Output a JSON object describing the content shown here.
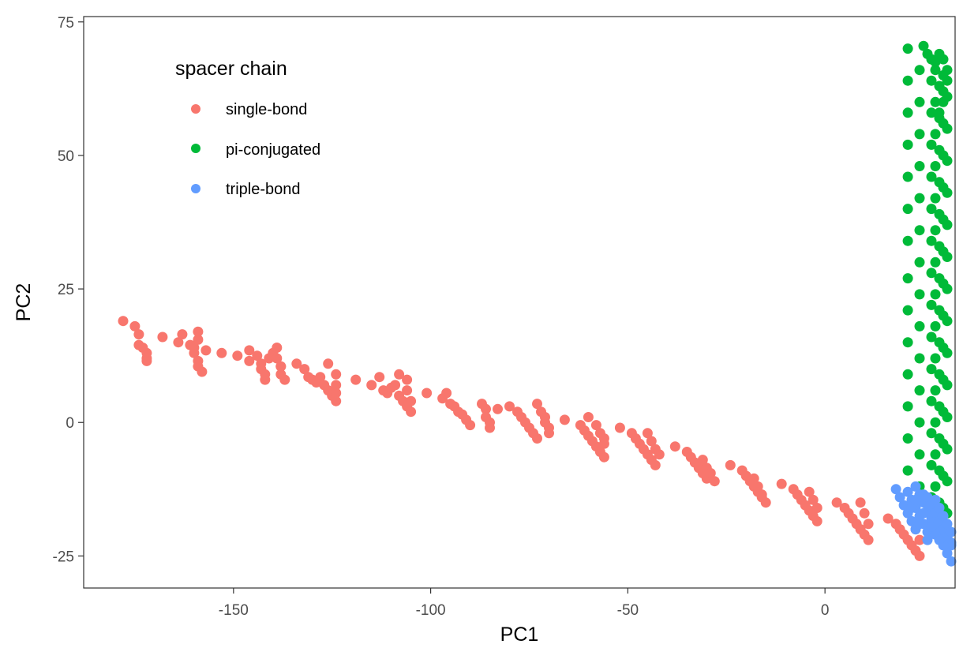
{
  "chart_data": {
    "type": "scatter",
    "xlabel": "PC1",
    "ylabel": "PC2",
    "xlim": [
      -188,
      33
    ],
    "ylim": [
      -31,
      76
    ],
    "x_ticks": [
      -150,
      -100,
      -50,
      0
    ],
    "y_ticks": [
      -25,
      0,
      25,
      50,
      75
    ],
    "x_tick_labels": [
      "-150",
      "-100",
      "-50",
      "0"
    ],
    "y_tick_labels": [
      "-25",
      "0",
      "25",
      "50",
      "75"
    ],
    "grid": false,
    "legend": {
      "title": "spacer chain",
      "position": "top-left"
    },
    "series": [
      {
        "name": "single-bond",
        "color": "#F8766D",
        "points": [
          [
            -178,
            19
          ],
          [
            -175,
            18
          ],
          [
            -174,
            16.5
          ],
          [
            -174,
            14.5
          ],
          [
            -173,
            14
          ],
          [
            -172,
            13
          ],
          [
            -172,
            12
          ],
          [
            -172,
            11.5
          ],
          [
            -168,
            16
          ],
          [
            -164,
            15
          ],
          [
            -163,
            16.5
          ],
          [
            -161,
            14.5
          ],
          [
            -160,
            14
          ],
          [
            -160,
            13
          ],
          [
            -159,
            11.5
          ],
          [
            -159,
            10.5
          ],
          [
            -158,
            9.5
          ],
          [
            -159,
            15.5
          ],
          [
            -159,
            17
          ],
          [
            -157,
            13.5
          ],
          [
            -153,
            13
          ],
          [
            -149,
            12.5
          ],
          [
            -146,
            13.5
          ],
          [
            -146,
            11.5
          ],
          [
            -144,
            12.5
          ],
          [
            -143,
            11
          ],
          [
            -143,
            10
          ],
          [
            -142,
            9
          ],
          [
            -142,
            8
          ],
          [
            -141,
            12
          ],
          [
            -140,
            13
          ],
          [
            -139,
            14
          ],
          [
            -139,
            12
          ],
          [
            -138,
            10.5
          ],
          [
            -138,
            9
          ],
          [
            -137,
            8
          ],
          [
            -138,
            10.5
          ],
          [
            -134,
            11
          ],
          [
            -132,
            10
          ],
          [
            -131,
            8.5
          ],
          [
            -130,
            8
          ],
          [
            -129,
            7.5
          ],
          [
            -128,
            8.5
          ],
          [
            -127,
            7
          ],
          [
            -126,
            6
          ],
          [
            -125,
            5
          ],
          [
            -124,
            4
          ],
          [
            -126,
            11
          ],
          [
            -124,
            9
          ],
          [
            -124,
            7
          ],
          [
            -124,
            5.5
          ],
          [
            -119,
            8
          ],
          [
            -115,
            7
          ],
          [
            -113,
            8.5
          ],
          [
            -112,
            6
          ],
          [
            -111,
            5.5
          ],
          [
            -110,
            6.5
          ],
          [
            -109,
            7
          ],
          [
            -108,
            5
          ],
          [
            -107,
            4
          ],
          [
            -106,
            3
          ],
          [
            -105,
            2
          ],
          [
            -108,
            9
          ],
          [
            -106,
            8
          ],
          [
            -106,
            6
          ],
          [
            -105,
            4
          ],
          [
            -101,
            5.5
          ],
          [
            -97,
            4.5
          ],
          [
            -96,
            5.5
          ],
          [
            -95,
            3.5
          ],
          [
            -94,
            3
          ],
          [
            -93,
            2
          ],
          [
            -92,
            1.5
          ],
          [
            -91,
            0.5
          ],
          [
            -90,
            -0.5
          ],
          [
            -87,
            3.5
          ],
          [
            -86,
            2.5
          ],
          [
            -86,
            1
          ],
          [
            -85,
            0
          ],
          [
            -85,
            -1
          ],
          [
            -83,
            2.5
          ],
          [
            -80,
            3
          ],
          [
            -78,
            2
          ],
          [
            -77,
            1
          ],
          [
            -76,
            0
          ],
          [
            -75,
            -1
          ],
          [
            -74,
            -2
          ],
          [
            -73,
            -3
          ],
          [
            -73,
            3.5
          ],
          [
            -72,
            2
          ],
          [
            -71,
            1
          ],
          [
            -71,
            0
          ],
          [
            -70,
            -1
          ],
          [
            -70,
            -2
          ],
          [
            -66,
            0.5
          ],
          [
            -62,
            -0.5
          ],
          [
            -61,
            -1.5
          ],
          [
            -60,
            -2.5
          ],
          [
            -59,
            -3.5
          ],
          [
            -58,
            -4.5
          ],
          [
            -57,
            -5.5
          ],
          [
            -56,
            -6.5
          ],
          [
            -60,
            1
          ],
          [
            -58,
            -0.5
          ],
          [
            -57,
            -2
          ],
          [
            -56,
            -3
          ],
          [
            -56,
            -4
          ],
          [
            -52,
            -1
          ],
          [
            -49,
            -2
          ],
          [
            -48,
            -3
          ],
          [
            -47,
            -4
          ],
          [
            -46,
            -5
          ],
          [
            -45,
            -6
          ],
          [
            -44,
            -7
          ],
          [
            -43,
            -8
          ],
          [
            -45,
            -2
          ],
          [
            -44,
            -3.5
          ],
          [
            -43,
            -5
          ],
          [
            -42,
            -6
          ],
          [
            -38,
            -4.5
          ],
          [
            -35,
            -5.5
          ],
          [
            -34,
            -6.5
          ],
          [
            -33,
            -7.5
          ],
          [
            -32,
            -8.5
          ],
          [
            -31,
            -9.5
          ],
          [
            -30,
            -10.5
          ],
          [
            -31,
            -7
          ],
          [
            -30,
            -8.5
          ],
          [
            -29,
            -9.5
          ],
          [
            -28,
            -11
          ],
          [
            -24,
            -8
          ],
          [
            -21,
            -9
          ],
          [
            -20,
            -10
          ],
          [
            -19,
            -11
          ],
          [
            -18,
            -12
          ],
          [
            -17,
            -13
          ],
          [
            -16,
            -14
          ],
          [
            -15,
            -15
          ],
          [
            -18,
            -10.5
          ],
          [
            -17,
            -12
          ],
          [
            -16,
            -13.5
          ],
          [
            -11,
            -11.5
          ],
          [
            -8,
            -12.5
          ],
          [
            -7,
            -13.5
          ],
          [
            -6,
            -14.5
          ],
          [
            -5,
            -15.5
          ],
          [
            -4,
            -16.5
          ],
          [
            -3,
            -17.5
          ],
          [
            -2,
            -18.5
          ],
          [
            -4,
            -13
          ],
          [
            -3,
            -14.5
          ],
          [
            -2,
            -16
          ],
          [
            3,
            -15
          ],
          [
            5,
            -16
          ],
          [
            6,
            -17
          ],
          [
            7,
            -18
          ],
          [
            8,
            -19
          ],
          [
            9,
            -20
          ],
          [
            10,
            -21
          ],
          [
            11,
            -22
          ],
          [
            9,
            -15
          ],
          [
            10,
            -17
          ],
          [
            11,
            -19
          ],
          [
            16,
            -18
          ],
          [
            18,
            -19
          ],
          [
            19,
            -20
          ],
          [
            20,
            -21
          ],
          [
            21,
            -22
          ],
          [
            22,
            -23
          ],
          [
            23,
            -24
          ],
          [
            24,
            -25
          ],
          [
            23,
            -20
          ],
          [
            24,
            -22
          ]
        ]
      },
      {
        "name": "pi-conjugated",
        "color": "#00BA38",
        "points": [
          [
            21,
            70
          ],
          [
            25,
            70.5
          ],
          [
            26,
            69
          ],
          [
            27,
            68
          ],
          [
            28,
            67.5
          ],
          [
            29,
            69
          ],
          [
            30,
            68
          ],
          [
            31,
            66
          ],
          [
            31,
            64
          ],
          [
            30,
            62
          ],
          [
            30,
            60
          ],
          [
            29,
            58
          ],
          [
            21,
            64
          ],
          [
            24,
            66
          ],
          [
            27,
            64
          ],
          [
            29,
            63
          ],
          [
            31,
            61
          ],
          [
            21,
            58
          ],
          [
            24,
            60
          ],
          [
            27,
            58
          ],
          [
            29,
            57
          ],
          [
            31,
            55
          ],
          [
            21,
            52
          ],
          [
            24,
            54
          ],
          [
            27,
            52
          ],
          [
            29,
            51
          ],
          [
            31,
            49
          ],
          [
            21,
            46
          ],
          [
            24,
            48
          ],
          [
            27,
            46
          ],
          [
            29,
            45
          ],
          [
            31,
            43
          ],
          [
            21,
            40
          ],
          [
            24,
            42
          ],
          [
            27,
            40
          ],
          [
            29,
            39
          ],
          [
            31,
            37
          ],
          [
            21,
            34
          ],
          [
            24,
            36
          ],
          [
            27,
            34
          ],
          [
            29,
            33
          ],
          [
            31,
            31
          ],
          [
            21,
            27
          ],
          [
            24,
            30
          ],
          [
            27,
            28
          ],
          [
            29,
            27
          ],
          [
            31,
            25
          ],
          [
            21,
            21
          ],
          [
            24,
            24
          ],
          [
            27,
            22
          ],
          [
            29,
            21
          ],
          [
            31,
            19
          ],
          [
            21,
            15
          ],
          [
            24,
            18
          ],
          [
            27,
            16
          ],
          [
            29,
            15
          ],
          [
            31,
            13
          ],
          [
            21,
            9
          ],
          [
            24,
            12
          ],
          [
            27,
            10
          ],
          [
            29,
            9
          ],
          [
            31,
            7
          ],
          [
            21,
            3
          ],
          [
            24,
            6
          ],
          [
            27,
            4
          ],
          [
            29,
            3
          ],
          [
            31,
            1
          ],
          [
            21,
            -3
          ],
          [
            24,
            0
          ],
          [
            27,
            -2
          ],
          [
            29,
            -3
          ],
          [
            31,
            -5
          ],
          [
            21,
            -9
          ],
          [
            24,
            -6
          ],
          [
            27,
            -8
          ],
          [
            29,
            -9
          ],
          [
            31,
            -11
          ],
          [
            24,
            -12
          ],
          [
            27,
            -14
          ],
          [
            29,
            -15
          ],
          [
            31,
            -17
          ],
          [
            31,
            -20
          ],
          [
            31,
            -22
          ],
          [
            28,
            66
          ],
          [
            28,
            60
          ],
          [
            28,
            54
          ],
          [
            28,
            48
          ],
          [
            28,
            42
          ],
          [
            28,
            36
          ],
          [
            28,
            30
          ],
          [
            28,
            24
          ],
          [
            28,
            18
          ],
          [
            28,
            12
          ],
          [
            28,
            6
          ],
          [
            28,
            0
          ],
          [
            28,
            -6
          ],
          [
            28,
            -12
          ],
          [
            30,
            65
          ],
          [
            30,
            56
          ],
          [
            30,
            50
          ],
          [
            30,
            44
          ],
          [
            30,
            38
          ],
          [
            30,
            32
          ],
          [
            30,
            26
          ],
          [
            30,
            20
          ],
          [
            30,
            14
          ],
          [
            30,
            8
          ],
          [
            30,
            2
          ],
          [
            30,
            -4
          ],
          [
            30,
            -10
          ],
          [
            30,
            -16
          ]
        ]
      },
      {
        "name": "triple-bond",
        "color": "#619CFF",
        "points": [
          [
            18,
            -12.5
          ],
          [
            19,
            -14
          ],
          [
            20,
            -15.5
          ],
          [
            21,
            -17
          ],
          [
            22,
            -18.5
          ],
          [
            23,
            -20
          ],
          [
            21,
            -13
          ],
          [
            22,
            -14.5
          ],
          [
            23,
            -16
          ],
          [
            24,
            -17.5
          ],
          [
            25,
            -19
          ],
          [
            26,
            -20.5
          ],
          [
            23,
            -12
          ],
          [
            24,
            -13.5
          ],
          [
            25,
            -15
          ],
          [
            26,
            -16.5
          ],
          [
            27,
            -18
          ],
          [
            28,
            -19.5
          ],
          [
            25,
            -13.5
          ],
          [
            26,
            -15
          ],
          [
            27,
            -16.5
          ],
          [
            28,
            -18
          ],
          [
            29,
            -19.5
          ],
          [
            30,
            -21
          ],
          [
            26,
            -14
          ],
          [
            27,
            -15.5
          ],
          [
            28,
            -17
          ],
          [
            29,
            -18.5
          ],
          [
            30,
            -20
          ],
          [
            31,
            -21.5
          ],
          [
            32,
            -23
          ],
          [
            28,
            -14.5
          ],
          [
            29,
            -16
          ],
          [
            30,
            -17.5
          ],
          [
            31,
            -19
          ],
          [
            32,
            -20.5
          ],
          [
            32,
            -22.5
          ],
          [
            22,
            -16
          ],
          [
            24,
            -19
          ],
          [
            26,
            -22
          ],
          [
            28,
            -21
          ],
          [
            30,
            -23
          ],
          [
            31,
            -24.5
          ],
          [
            32,
            -26
          ],
          [
            29,
            -22
          ],
          [
            27,
            -19.5
          ],
          [
            25,
            -17
          ],
          [
            23,
            -14.5
          ]
        ]
      }
    ]
  }
}
